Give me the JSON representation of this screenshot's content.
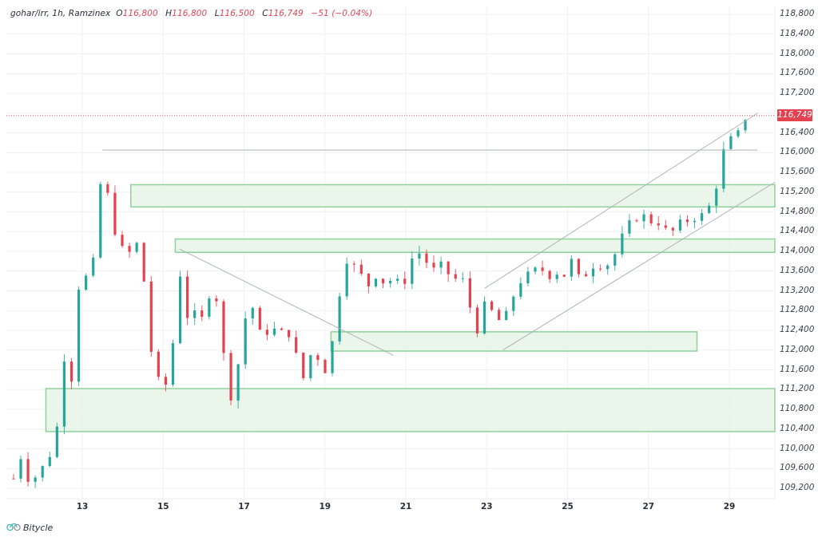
{
  "header": {
    "symbol": "gohar/irr, 1h, Ramzinex",
    "open_label": "O",
    "open": "116,800",
    "high_label": "H",
    "high": "116,800",
    "low_label": "L",
    "low": "116,500",
    "close_label": "C",
    "close": "116,749",
    "change": "−51 (−0.04%)"
  },
  "price_tag": "116,749",
  "logo": {
    "text": "Bitycle",
    "icon": "bicycle-icon"
  },
  "colors": {
    "up": "#26a69a",
    "down": "#e5414e",
    "zone_fill": "#e6f4e6",
    "zone_border": "#8fd19a",
    "grid": "#f0f1f3",
    "trendline": "#b0b3b8",
    "price_line": "#e5414e"
  },
  "chart_data": {
    "type": "candlestick",
    "title": "gohar/irr, 1h, Ramzinex",
    "xlabel": "",
    "ylabel": "",
    "ylim": [
      109000,
      119000
    ],
    "y_ticks": [
      118800,
      118400,
      118000,
      117600,
      117200,
      116749,
      116400,
      116000,
      115600,
      115200,
      114800,
      114400,
      114000,
      113600,
      113200,
      112800,
      112400,
      112000,
      111600,
      111200,
      110800,
      110400,
      110000,
      109600,
      109200
    ],
    "y_tick_labels": [
      "118,800",
      "118,400",
      "118,000",
      "117,600",
      "117,200",
      "116,749",
      "116,400",
      "116,000",
      "115,600",
      "115,200",
      "114,800",
      "114,400",
      "114,000",
      "113,600",
      "113,200",
      "112,800",
      "112,400",
      "112,000",
      "111,600",
      "111,200",
      "110,800",
      "110,400",
      "110,000",
      "109,600",
      "109,200"
    ],
    "x_ticks": [
      "13",
      "15",
      "17",
      "19",
      "21",
      "23",
      "25",
      "27",
      "29"
    ],
    "x_tick_positions_day": [
      13,
      15,
      17,
      19,
      21,
      23,
      25,
      27,
      29
    ],
    "last_price": 116749,
    "ohlc_last": {
      "open": 116800,
      "high": 116800,
      "low": 116500,
      "close": 116749,
      "change": -51,
      "change_pct": -0.04
    },
    "price_path": [
      [
        11.3,
        109400
      ],
      [
        11.5,
        109900
      ],
      [
        11.7,
        109300
      ],
      [
        11.9,
        109500
      ],
      [
        12.1,
        109700
      ],
      [
        12.3,
        110100
      ],
      [
        12.5,
        111000
      ],
      [
        12.6,
        112600
      ],
      [
        12.75,
        111300
      ],
      [
        12.85,
        113000
      ],
      [
        13.0,
        113700
      ],
      [
        13.2,
        113200
      ],
      [
        13.4,
        114800
      ],
      [
        13.5,
        115900
      ],
      [
        13.7,
        114700
      ],
      [
        13.9,
        114200
      ],
      [
        14.1,
        113800
      ],
      [
        14.3,
        114300
      ],
      [
        14.5,
        113600
      ],
      [
        14.7,
        112000
      ],
      [
        14.9,
        111300
      ],
      [
        15.1,
        111300
      ],
      [
        15.3,
        112500
      ],
      [
        15.45,
        113800
      ],
      [
        15.6,
        112700
      ],
      [
        15.8,
        112700
      ],
      [
        16.0,
        112600
      ],
      [
        16.2,
        113400
      ],
      [
        16.4,
        112800
      ],
      [
        16.6,
        110900
      ],
      [
        16.8,
        111400
      ],
      [
        17.0,
        112600
      ],
      [
        17.2,
        112900
      ],
      [
        17.4,
        112300
      ],
      [
        17.6,
        112400
      ],
      [
        17.8,
        112400
      ],
      [
        18.0,
        112300
      ],
      [
        18.2,
        112400
      ],
      [
        18.4,
        111200
      ],
      [
        18.6,
        111900
      ],
      [
        18.8,
        111900
      ],
      [
        19.0,
        111600
      ],
      [
        19.2,
        112200
      ],
      [
        19.4,
        113400
      ],
      [
        19.5,
        113900
      ],
      [
        19.7,
        113700
      ],
      [
        19.9,
        113500
      ],
      [
        20.1,
        113300
      ],
      [
        20.3,
        113600
      ],
      [
        20.5,
        113300
      ],
      [
        20.7,
        113500
      ],
      [
        20.9,
        113200
      ],
      [
        21.1,
        113800
      ],
      [
        21.3,
        114000
      ],
      [
        21.5,
        113800
      ],
      [
        21.7,
        113600
      ],
      [
        21.9,
        113700
      ],
      [
        22.1,
        113500
      ],
      [
        22.3,
        113400
      ],
      [
        22.5,
        113400
      ],
      [
        22.7,
        112200
      ],
      [
        22.9,
        112900
      ],
      [
        23.1,
        112800
      ],
      [
        23.3,
        112600
      ],
      [
        23.5,
        112700
      ],
      [
        23.7,
        113200
      ],
      [
        23.9,
        113500
      ],
      [
        24.1,
        113500
      ],
      [
        24.3,
        113700
      ],
      [
        24.5,
        113500
      ],
      [
        24.7,
        113600
      ],
      [
        24.9,
        113500
      ],
      [
        25.1,
        113800
      ],
      [
        25.3,
        113400
      ],
      [
        25.5,
        113600
      ],
      [
        25.7,
        113800
      ],
      [
        25.9,
        113700
      ],
      [
        26.1,
        113800
      ],
      [
        26.3,
        114200
      ],
      [
        26.5,
        114500
      ],
      [
        26.7,
        114700
      ],
      [
        26.9,
        114700
      ],
      [
        27.1,
        114600
      ],
      [
        27.3,
        114600
      ],
      [
        27.5,
        114300
      ],
      [
        27.7,
        114500
      ],
      [
        27.9,
        114600
      ],
      [
        28.1,
        114700
      ],
      [
        28.3,
        114700
      ],
      [
        28.5,
        114900
      ],
      [
        28.7,
        115400
      ],
      [
        28.85,
        116000
      ],
      [
        29.0,
        116300
      ],
      [
        29.15,
        116100
      ],
      [
        29.3,
        116700
      ],
      [
        29.5,
        116749
      ]
    ],
    "zones": [
      {
        "name": "zone-a",
        "x_start_day": 14.2,
        "x_end_day": 30.2,
        "top": 115350,
        "bottom": 114900
      },
      {
        "name": "zone-b",
        "x_start_day": 15.3,
        "x_end_day": 30.2,
        "top": 114250,
        "bottom": 113980
      },
      {
        "name": "zone-c",
        "x_start_day": 19.15,
        "x_end_day": 28.2,
        "top": 112370,
        "bottom": 111980
      },
      {
        "name": "zone-d",
        "x_start_day": 12.1,
        "x_end_day": 30.2,
        "top": 111220,
        "bottom": 110350
      }
    ],
    "lines": [
      {
        "name": "resistance-horizontal",
        "x1_day": 13.5,
        "y1": 116050,
        "x2_day": 29.7,
        "y2": 116050
      },
      {
        "name": "descending-trendline",
        "x1_day": 15.4,
        "y1": 114050,
        "x2_day": 20.7,
        "y2": 111890
      },
      {
        "name": "channel-upper",
        "x1_day": 22.95,
        "y1": 113250,
        "x2_day": 29.7,
        "y2": 116800
      },
      {
        "name": "channel-lower",
        "x1_day": 23.4,
        "y1": 112000,
        "x2_day": 30.2,
        "y2": 115400
      }
    ],
    "grid": true,
    "legend_position": "top-left"
  }
}
